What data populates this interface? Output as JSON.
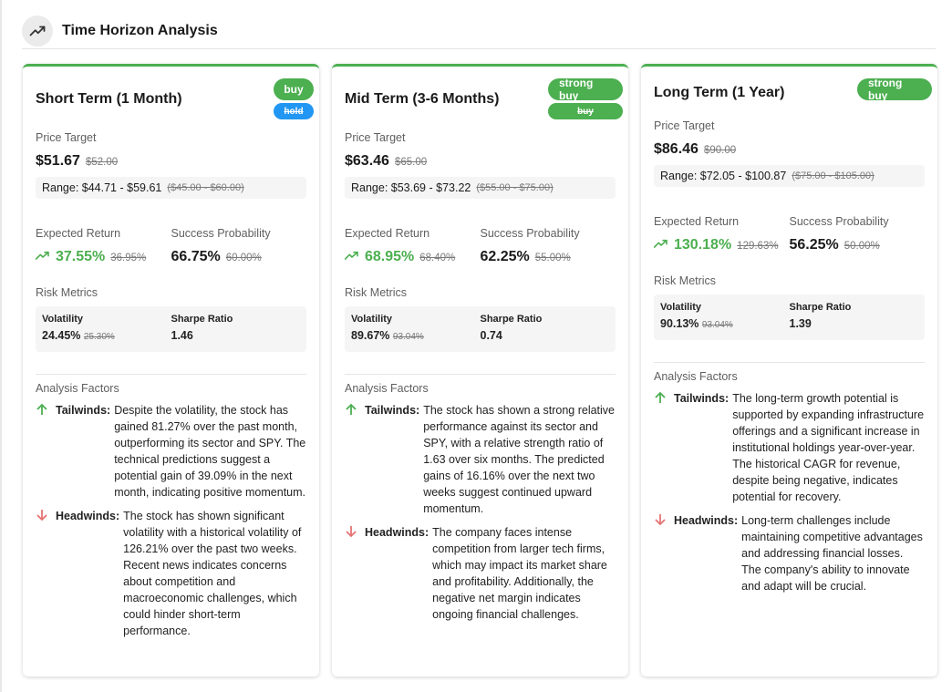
{
  "header": {
    "title": "Time Horizon Analysis",
    "icon": "trending-up-icon"
  },
  "labels": {
    "price_target": "Price Target",
    "expected_return": "Expected Return",
    "success_probability": "Success Probability",
    "risk_metrics": "Risk Metrics",
    "volatility": "Volatility",
    "sharpe_ratio": "Sharpe Ratio",
    "analysis_factors": "Analysis Factors",
    "tailwinds": "Tailwinds:",
    "headwinds": "Headwinds:"
  },
  "colors": {
    "accent": "#4caf50",
    "buy": "#4caf50",
    "hold": "#2196f3",
    "headwind": "#e57373"
  },
  "cards": [
    {
      "title": "Short Term (1 Month)",
      "rating": "buy",
      "previous_rating": "hold",
      "price": "$51.67",
      "previous_price": "$52.00",
      "range": "Range: $44.71 - $59.61",
      "previous_range": "($45.00 - $60.00)",
      "expected_return": "37.55%",
      "previous_expected_return": "36.95%",
      "success_probability": "66.75%",
      "previous_success_probability": "60.00%",
      "volatility": "24.45%",
      "previous_volatility": "25.30%",
      "sharpe_ratio": "1.46",
      "tailwinds": "Despite the volatility, the stock has gained 81.27% over the past month, outperforming its sector and SPY. The technical predictions suggest a potential gain of 39.09% in the next month, indicating positive momentum.",
      "headwinds": "The stock has shown significant volatility with a historical volatility of 126.21% over the past two weeks. Recent news indicates concerns about competition and macroeconomic challenges, which could hinder short-term performance."
    },
    {
      "title": "Mid Term (3-6 Months)",
      "rating": "strong buy",
      "previous_rating": "buy",
      "price": "$63.46",
      "previous_price": "$65.00",
      "range": "Range: $53.69 - $73.22",
      "previous_range": "($55.00 - $75.00)",
      "expected_return": "68.95%",
      "previous_expected_return": "68.40%",
      "success_probability": "62.25%",
      "previous_success_probability": "55.00%",
      "volatility": "89.67%",
      "previous_volatility": "93.04%",
      "sharpe_ratio": "0.74",
      "tailwinds": "The stock has shown a strong relative performance against its sector and SPY, with a relative strength ratio of 1.63 over six months. The predicted gains of 16.16% over the next two weeks suggest continued upward momentum.",
      "headwinds": "The company faces intense competition from larger tech firms, which may impact its market share and profitability. Additionally, the negative net margin indicates ongoing financial challenges."
    },
    {
      "title": "Long Term (1 Year)",
      "rating": "strong buy",
      "price": "$86.46",
      "previous_price": "$90.00",
      "range": "Range: $72.05 - $100.87",
      "previous_range": "($75.00 - $105.00)",
      "expected_return": "130.18%",
      "previous_expected_return": "129.63%",
      "success_probability": "56.25%",
      "previous_success_probability": "50.00%",
      "volatility": "90.13%",
      "previous_volatility": "93.04%",
      "sharpe_ratio": "1.39",
      "tailwinds": "The long-term growth potential is supported by expanding infrastructure offerings and a significant increase in institutional holdings year-over-year. The historical CAGR for revenue, despite being negative, indicates potential for recovery.",
      "headwinds": "Long-term challenges include maintaining competitive advantages and addressing financial losses. The company's ability to innovate and adapt will be crucial."
    }
  ]
}
